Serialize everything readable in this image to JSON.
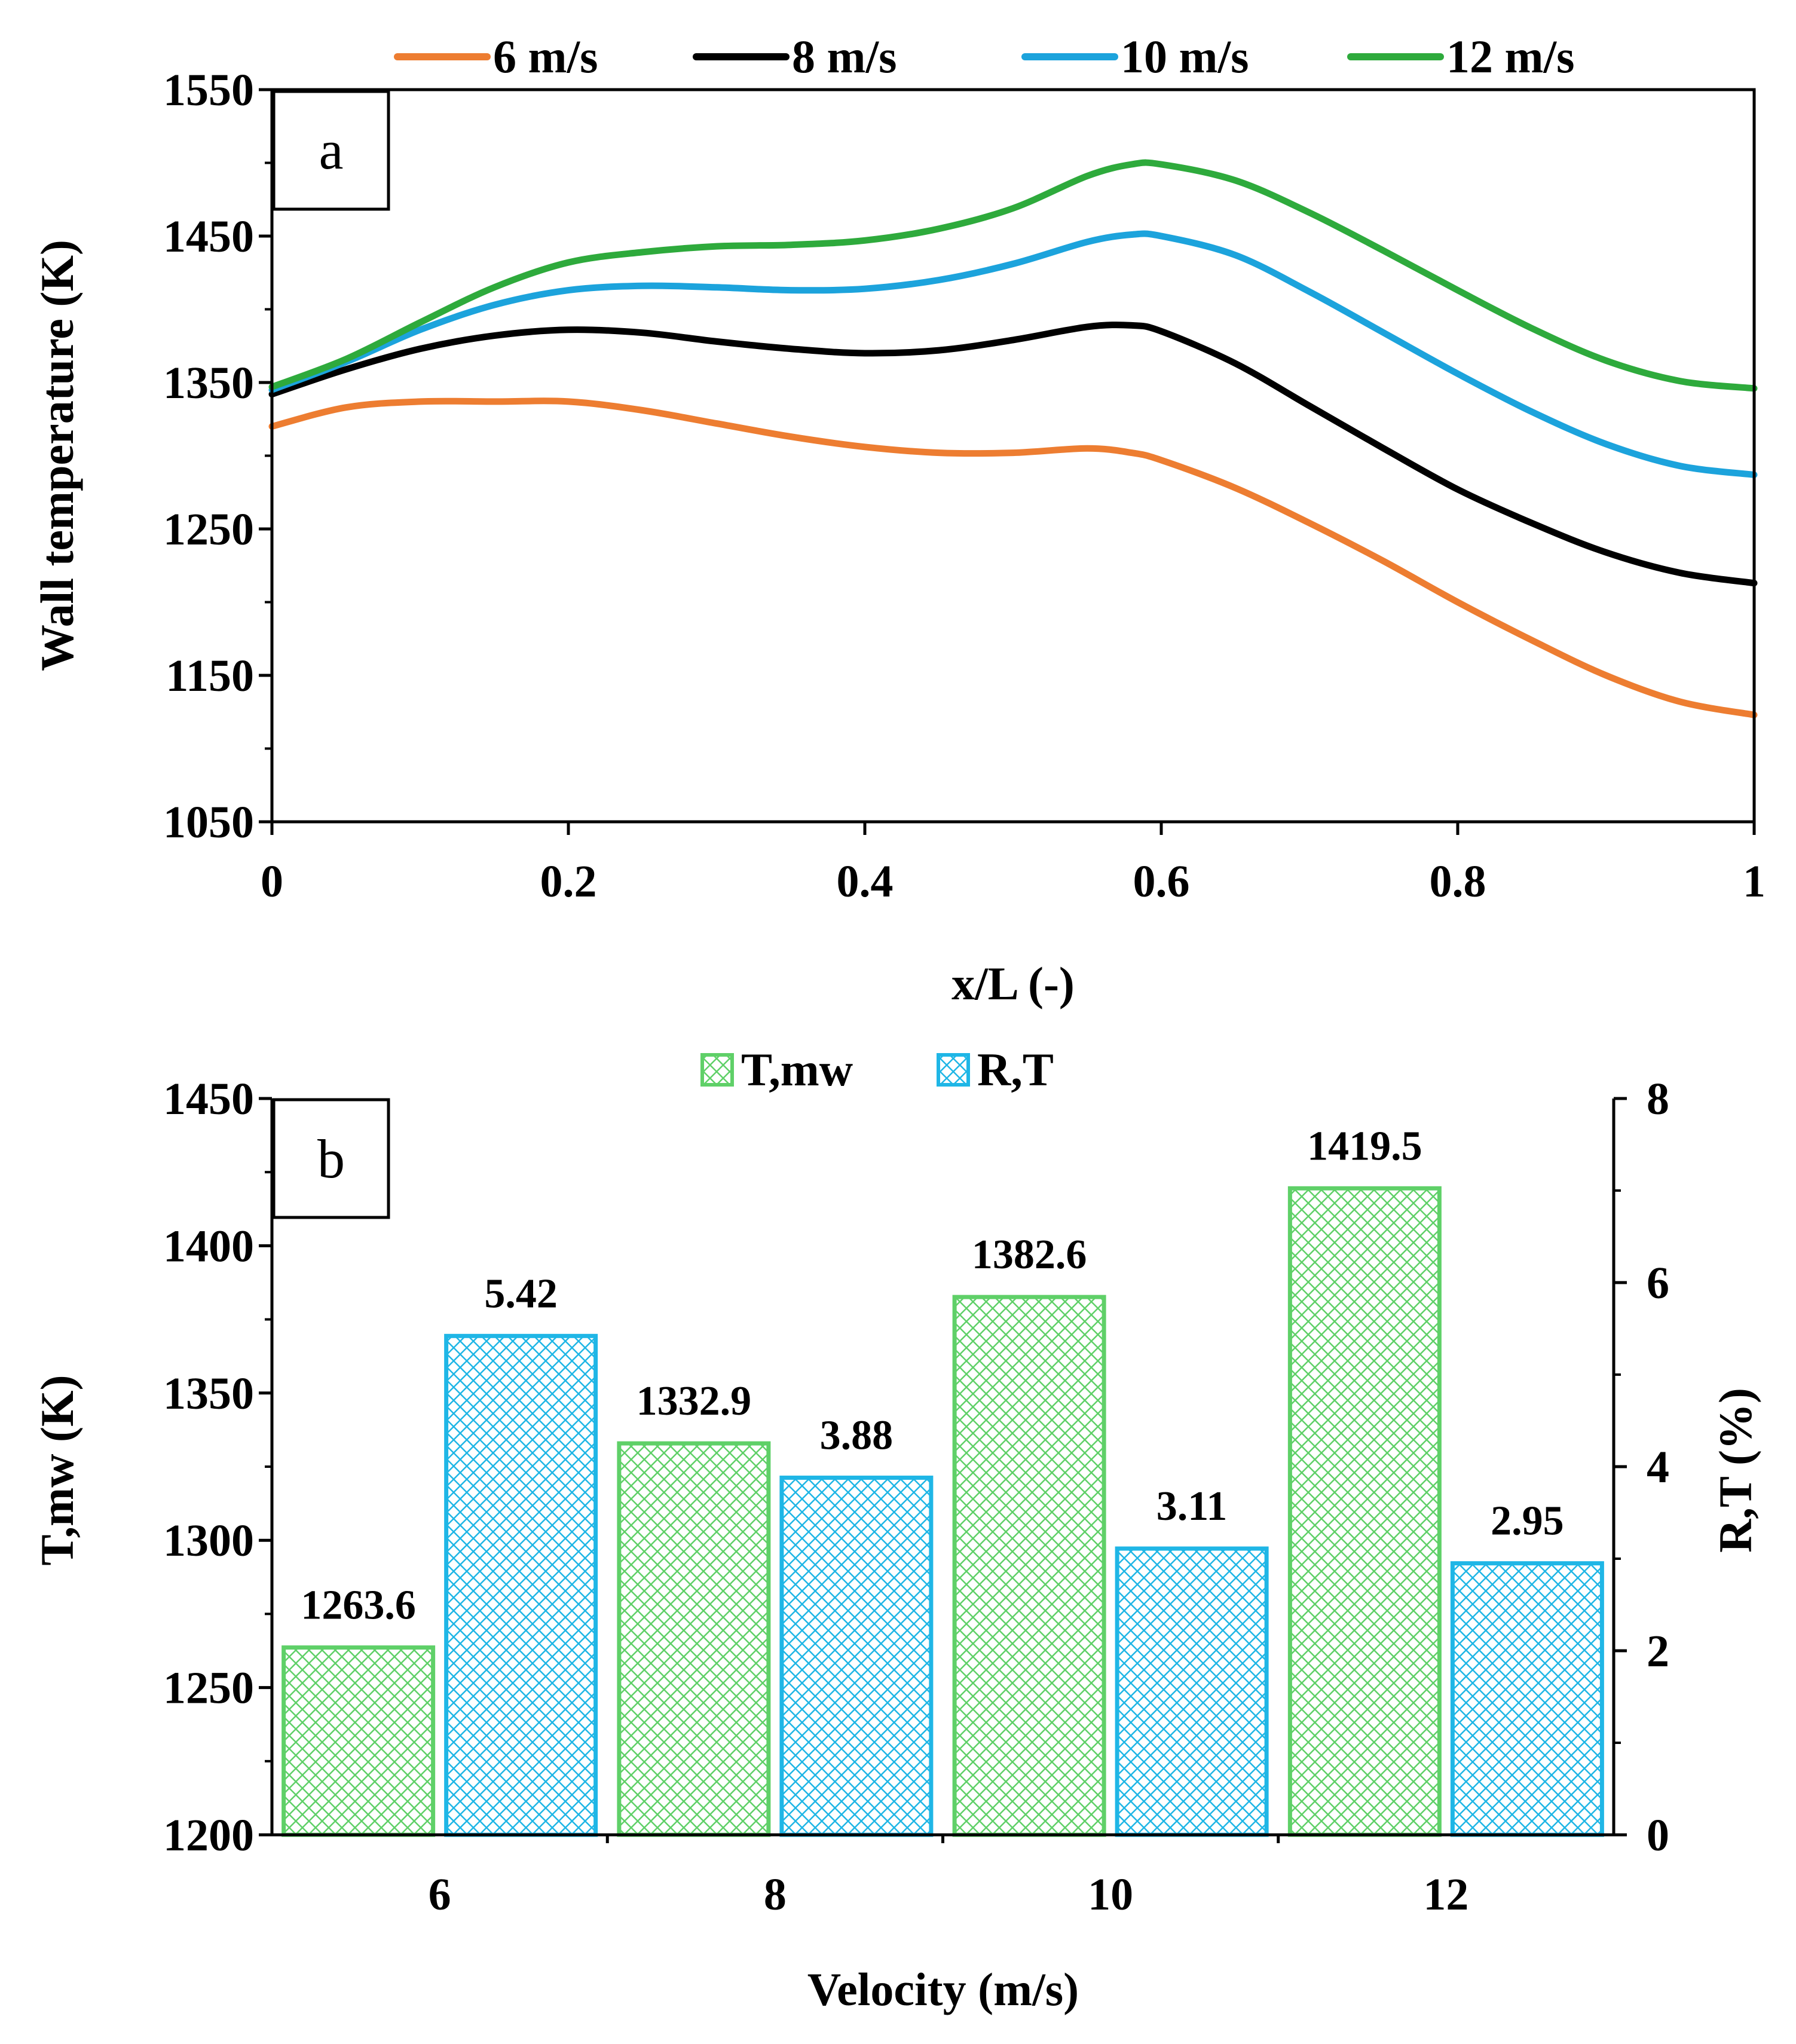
{
  "chart_data": [
    {
      "panel": "a",
      "type": "line",
      "xlabel": "x/L (-)",
      "ylabel": "Wall temperature (K)",
      "xlim": [
        0,
        1
      ],
      "ylim": [
        1050,
        1550
      ],
      "xticks": [
        "0",
        "0.2",
        "0.4",
        "0.6",
        "0.8",
        "1"
      ],
      "yticks": [
        "1050",
        "1150",
        "1250",
        "1350",
        "1450",
        "1550"
      ],
      "legend_position": "top",
      "grid": false,
      "x": [
        0,
        0.05,
        0.1,
        0.15,
        0.2,
        0.25,
        0.3,
        0.35,
        0.4,
        0.45,
        0.5,
        0.55,
        0.58,
        0.6,
        0.65,
        0.7,
        0.75,
        0.8,
        0.85,
        0.9,
        0.95,
        1.0
      ],
      "series": [
        {
          "name": "6 m/s",
          "color": "#ED7D31",
          "values": [
            1320,
            1333,
            1337,
            1337,
            1337,
            1331,
            1322,
            1313,
            1306,
            1302,
            1302,
            1305,
            1302,
            1297,
            1278,
            1254,
            1228,
            1200,
            1174,
            1150,
            1132,
            1123
          ]
        },
        {
          "name": "8 m/s",
          "color": "#000000",
          "values": [
            1342,
            1359,
            1373,
            1382,
            1386,
            1384,
            1378,
            1373,
            1370,
            1372,
            1379,
            1388,
            1389,
            1385,
            1363,
            1334,
            1305,
            1277,
            1254,
            1234,
            1220,
            1213
          ]
        },
        {
          "name": "10 m/s",
          "color": "#1CA3DC",
          "values": [
            1345,
            1364,
            1386,
            1403,
            1413,
            1416,
            1415,
            1413,
            1414,
            1420,
            1431,
            1446,
            1451,
            1450,
            1437,
            1412,
            1384,
            1356,
            1330,
            1308,
            1293,
            1287
          ]
        },
        {
          "name": "12 m/s",
          "color": "#2EAA3C",
          "values": [
            1347,
            1366,
            1391,
            1415,
            1432,
            1439,
            1443,
            1444,
            1447,
            1455,
            1469,
            1491,
            1499,
            1499,
            1488,
            1466,
            1440,
            1413,
            1387,
            1365,
            1351,
            1346
          ]
        }
      ]
    },
    {
      "panel": "b",
      "type": "bar",
      "xlabel": "Velocity (m/s)",
      "ylabel": "T,mw (K)",
      "y2label": "R,T (%)",
      "categories": [
        "6",
        "8",
        "10",
        "12"
      ],
      "ylim": [
        1200,
        1450
      ],
      "y2lim": [
        0,
        8
      ],
      "yticks": [
        "1200",
        "1250",
        "1300",
        "1350",
        "1400",
        "1450"
      ],
      "y2ticks": [
        "0",
        "2",
        "4",
        "6",
        "8"
      ],
      "legend_position": "top",
      "grid": false,
      "series": [
        {
          "name": "T,mw",
          "axis": "left",
          "color": "#5FD068",
          "values": [
            1263.6,
            1332.9,
            1382.6,
            1419.5
          ],
          "labels": [
            "1263.6",
            "1332.9",
            "1382.6",
            "1419.5"
          ]
        },
        {
          "name": "R,T",
          "axis": "right",
          "color": "#1FB6E6",
          "values": [
            5.42,
            3.88,
            3.11,
            2.95
          ],
          "labels": [
            "5.42",
            "3.88",
            "3.11",
            "2.95"
          ]
        }
      ]
    }
  ]
}
